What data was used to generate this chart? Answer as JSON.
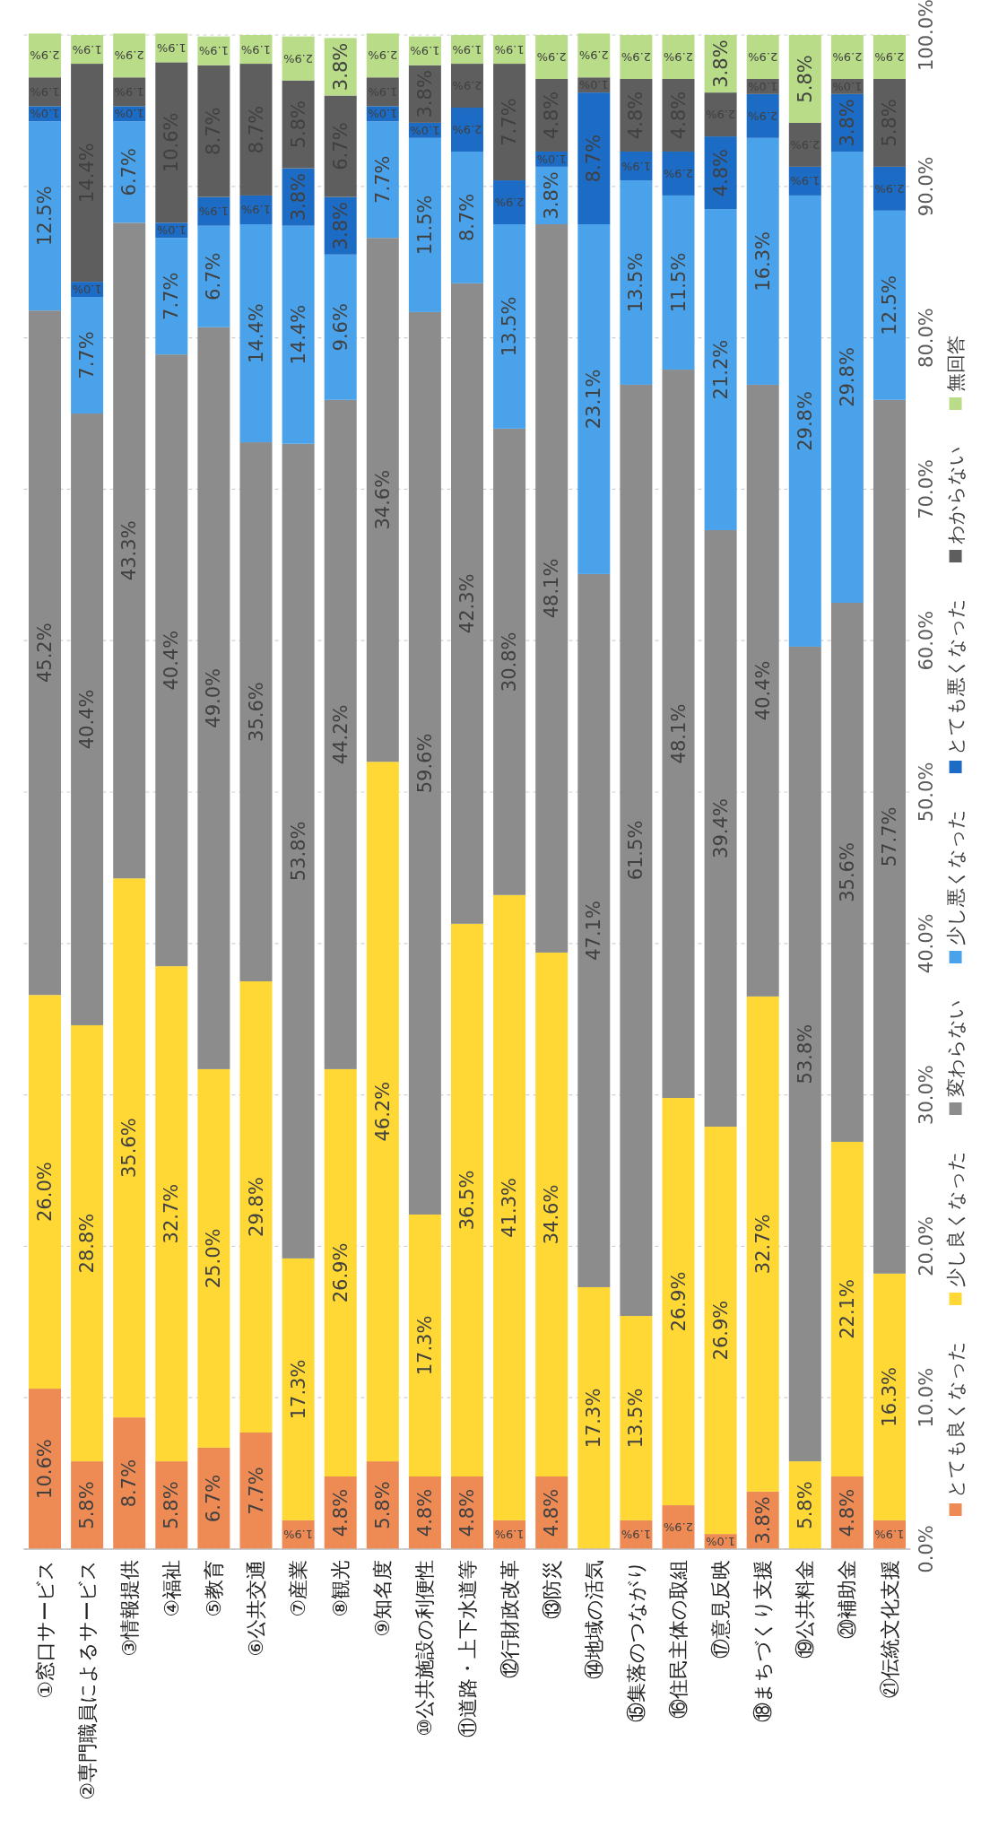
{
  "chart_data": {
    "type": "bar",
    "stacked": true,
    "categories": [
      "①窓口サービス",
      "②専門職員によるサービス",
      "③情報提供",
      "④福祉",
      "⑤教育",
      "⑥公共交通",
      "⑦産業",
      "⑧観光",
      "⑨知名度",
      "⑩公共施設の利便性",
      "⑪道路・上下水道等",
      "⑫行財政改革",
      "⑬防災",
      "⑭地域の活気",
      "⑮集落のつながり",
      "⑯住民主体の取組",
      "⑰意見反映",
      "⑱まちづくり支援",
      "⑲公共料金",
      "⑳補助金",
      "㉑伝統文化支援"
    ],
    "ylim": [
      0,
      100
    ],
    "yticks": [
      {
        "value": 0,
        "label": "0.0%"
      },
      {
        "value": 10,
        "label": "10.0%"
      },
      {
        "value": 20,
        "label": "20.0%"
      },
      {
        "value": 30,
        "label": "30.0%"
      },
      {
        "value": 40,
        "label": "40.0%"
      },
      {
        "value": 50,
        "label": "50.0%"
      },
      {
        "value": 60,
        "label": "60.0%"
      },
      {
        "value": 70,
        "label": "70.0%"
      },
      {
        "value": 80,
        "label": "80.0%"
      },
      {
        "value": 90,
        "label": "90.0%"
      },
      {
        "value": 100,
        "label": "100.0%"
      }
    ],
    "grid": "y",
    "legend": "right",
    "series": [
      {
        "name": "とても良くなった",
        "color": "#ee8b55",
        "values": [
          10.6,
          5.8,
          8.7,
          5.8,
          6.7,
          7.7,
          1.9,
          4.8,
          5.8,
          4.8,
          4.8,
          1.9,
          4.8,
          null,
          1.9,
          2.9,
          1.0,
          3.8,
          null,
          4.8,
          1.9
        ],
        "value_labels": [
          "10.6%",
          "5.8%",
          "8.7%",
          "5.8%",
          "6.7%",
          "7.7%",
          "1.9%",
          "4.8%",
          "5.8%",
          "4.8%",
          "4.8%",
          "1.9%",
          "4.8%",
          null,
          "1.9%",
          "2.9%",
          "1.0%",
          "3.8%",
          null,
          "4.8%",
          "1.9%"
        ]
      },
      {
        "name": "少し良くなった",
        "color": "#ffd835",
        "values": [
          26.0,
          28.8,
          35.6,
          32.7,
          25.0,
          29.8,
          17.3,
          26.9,
          46.2,
          17.3,
          36.5,
          41.3,
          34.6,
          17.3,
          13.5,
          26.9,
          26.9,
          32.7,
          5.8,
          22.1,
          16.3
        ],
        "value_labels": [
          "26.0%",
          "28.8%",
          "35.6%",
          "32.7%",
          "25.0%",
          "29.8%",
          "17.3%",
          "26.9%",
          "46.2%",
          "17.3%",
          "36.5%",
          "41.3%",
          "34.6%",
          "17.3%",
          "13.5%",
          "26.9%",
          "26.9%",
          "32.7%",
          "5.8%",
          "22.1%",
          "16.3%"
        ]
      },
      {
        "name": "変わらない",
        "color": "#8c8c8c",
        "values": [
          45.2,
          40.4,
          43.3,
          40.4,
          49.0,
          35.6,
          53.8,
          44.2,
          34.6,
          59.6,
          42.3,
          30.8,
          48.1,
          47.1,
          61.5,
          48.1,
          39.4,
          40.4,
          53.8,
          35.6,
          57.7
        ],
        "value_labels": [
          "45.2%",
          "40.4%",
          "43.3%",
          "40.4%",
          "49.0%",
          "35.6%",
          "53.8%",
          "44.2%",
          "34.6%",
          "59.6%",
          "42.3%",
          "30.8%",
          "48.1%",
          "47.1%",
          "61.5%",
          "48.1%",
          "39.4%",
          "40.4%",
          "53.8%",
          "35.6%",
          "57.7%"
        ]
      },
      {
        "name": "少し悪くなった",
        "color": "#4aa3ea",
        "values": [
          12.5,
          7.7,
          6.7,
          7.7,
          6.7,
          14.4,
          14.4,
          9.6,
          7.7,
          11.5,
          8.7,
          13.5,
          3.8,
          23.1,
          13.5,
          11.5,
          21.2,
          16.3,
          29.8,
          29.8,
          12.5
        ],
        "value_labels": [
          "12.5%",
          "7.7%",
          "6.7%",
          "7.7%",
          "6.7%",
          "14.4%",
          "14.4%",
          "9.6%",
          "7.7%",
          "11.5%",
          "8.7%",
          "13.5%",
          "3.8%",
          "23.1%",
          "13.5%",
          "11.5%",
          "21.2%",
          "16.3%",
          "29.8%",
          "29.8%",
          "12.5%"
        ]
      },
      {
        "name": "とても悪くなった",
        "color": "#1c6bc4",
        "values": [
          1.0,
          1.0,
          1.0,
          1.0,
          1.9,
          1.9,
          3.8,
          3.8,
          1.0,
          1.0,
          2.9,
          2.9,
          1.0,
          8.7,
          1.9,
          2.9,
          4.8,
          2.9,
          1.9,
          3.8,
          2.9
        ],
        "value_labels": [
          "1.0%",
          "1.0%",
          "1.0%",
          "1.0%",
          "1.9%",
          "1.9%",
          "3.8%",
          "3.8%",
          "1.0%",
          "1.0%",
          "2.9%",
          "2.9%",
          "1.0%",
          "8.7%",
          "1.9%",
          "2.9%",
          "4.8%",
          "2.9%",
          "1.9%",
          "3.8%",
          "2.9%"
        ]
      },
      {
        "name": "わからない",
        "color": "#5e5e5e",
        "values": [
          1.9,
          14.4,
          1.9,
          10.6,
          8.7,
          8.7,
          5.8,
          6.7,
          1.9,
          3.8,
          2.9,
          7.7,
          4.8,
          1.0,
          4.8,
          4.8,
          2.9,
          1.0,
          2.9,
          1.0,
          5.8
        ],
        "value_labels": [
          "1.9%",
          "14.4%",
          "1.9%",
          "10.6%",
          "8.7%",
          "8.7%",
          "5.8%",
          "6.7%",
          "1.9%",
          "3.8%",
          "2.9%",
          "7.7%",
          "4.8%",
          "1.0%",
          "4.8%",
          "4.8%",
          "2.9%",
          "1.0%",
          "2.9%",
          "1.0%",
          "5.8%"
        ]
      },
      {
        "name": "無回答",
        "color": "#b8dc87",
        "values": [
          2.9,
          1.9,
          2.9,
          1.9,
          1.9,
          1.9,
          2.9,
          3.8,
          2.9,
          1.9,
          1.9,
          1.9,
          2.9,
          2.9,
          2.9,
          2.9,
          3.8,
          2.9,
          5.8,
          2.9,
          2.9
        ],
        "value_labels": [
          "2.9%",
          "1.9%",
          "2.9%",
          "1.9%",
          "1.9%",
          "1.9%",
          "2.9%",
          "3.8%",
          "2.9%",
          "1.9%",
          "1.9%",
          "1.9%",
          "2.9%",
          "2.9%",
          "2.9%",
          "2.9%",
          "3.8%",
          "2.9%",
          "5.8%",
          "2.9%",
          "2.9%"
        ]
      }
    ]
  }
}
